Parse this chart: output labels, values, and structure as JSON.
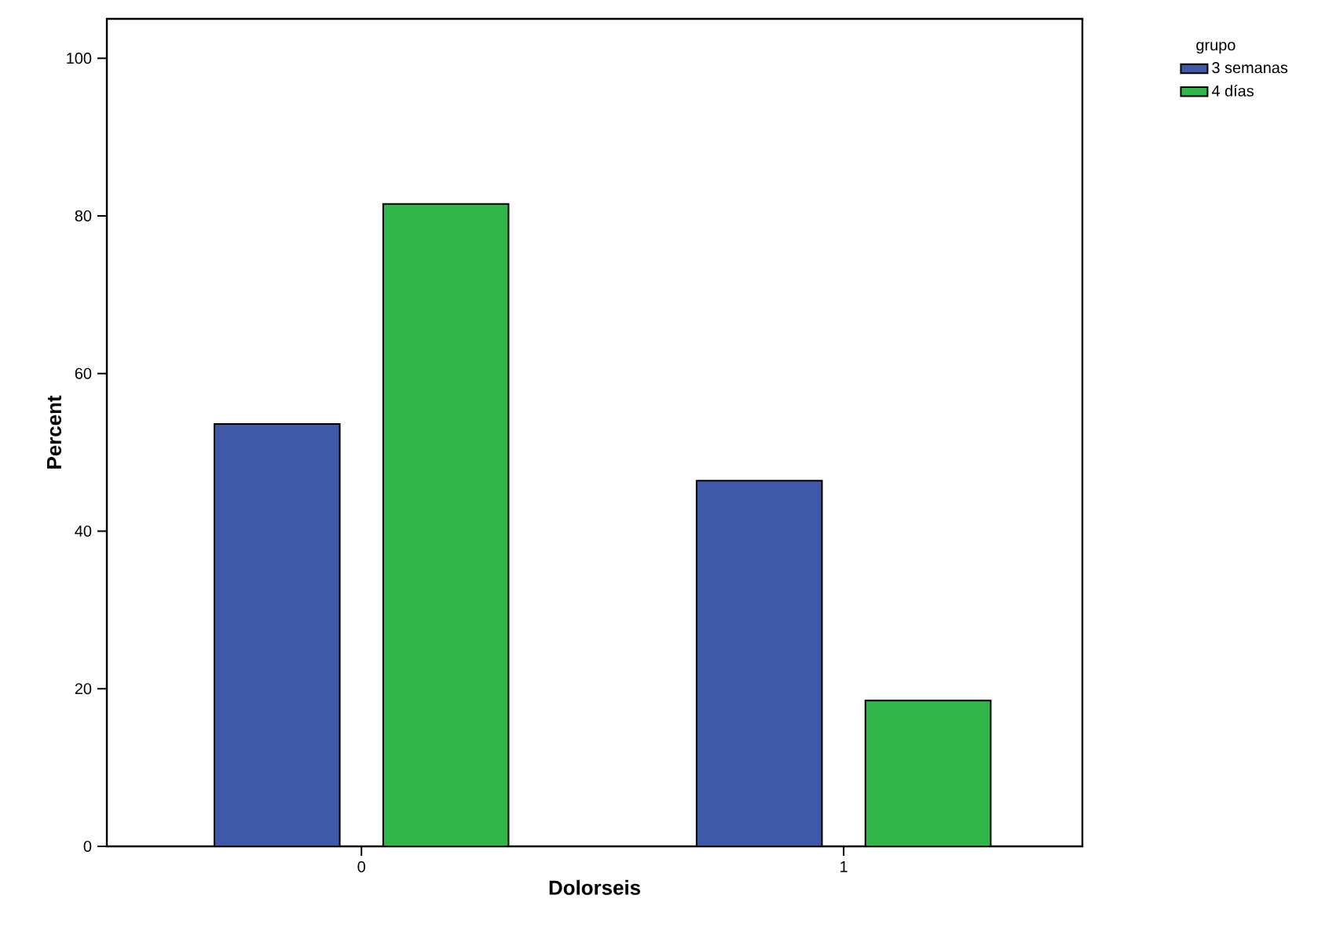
{
  "chart_data": {
    "type": "bar",
    "xlabel": "Dolorseis",
    "ylabel": "Percent",
    "legend_title": "grupo",
    "categories": [
      "0",
      "1"
    ],
    "series": [
      {
        "name": "3 semanas",
        "color": "#3f58a8",
        "values": [
          53.6,
          46.4
        ]
      },
      {
        "name": "4 días",
        "color": "#31b64a",
        "values": [
          81.5,
          18.5
        ]
      }
    ],
    "ylim": [
      0,
      105
    ],
    "yticks": [
      0,
      20,
      40,
      60,
      80,
      100
    ],
    "grid": false,
    "legend": "top right"
  }
}
